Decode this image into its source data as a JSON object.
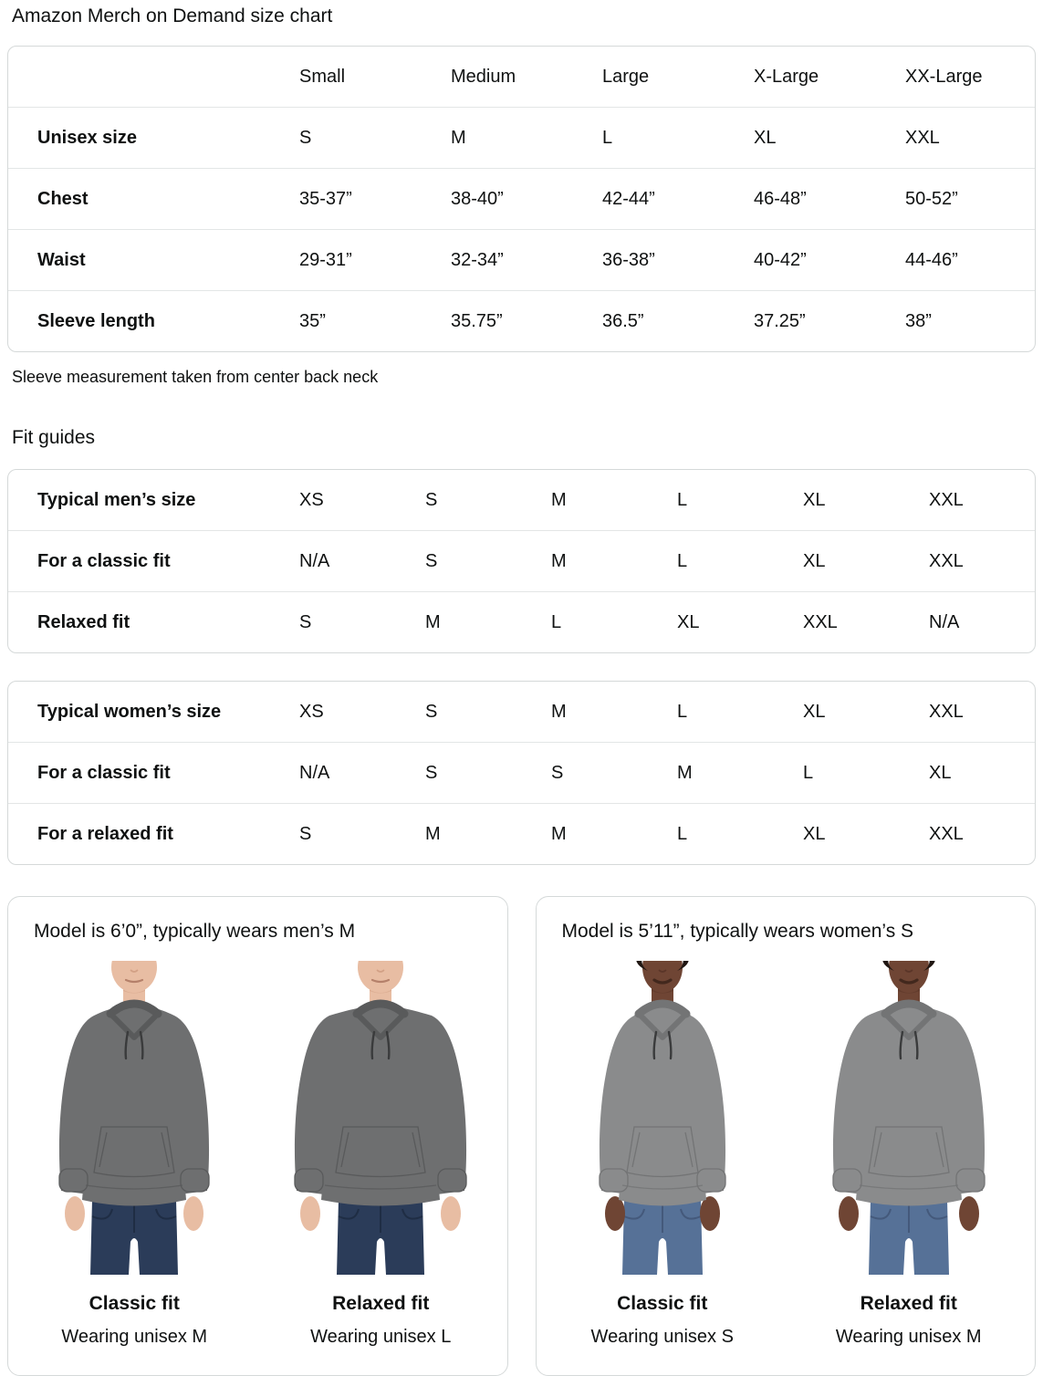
{
  "page": {
    "title": "Amazon Merch on Demand size chart",
    "footnote": "Sleeve measurement taken from center back neck",
    "fit_guides_heading": "Fit guides"
  },
  "colors": {
    "text": "#0f1111",
    "card_border": "#d5d9d9",
    "row_separator": "#e3e6e6",
    "hoodie_gray_men": "#6e6f70",
    "hoodie_gray_women": "#8a8b8c",
    "jeans_men": "#2b3c59",
    "jeans_women": "#567197"
  },
  "size_table": {
    "columns": [
      "Small",
      "Medium",
      "Large",
      "X-Large",
      "XX-Large"
    ],
    "rows": [
      {
        "label": "Unisex size",
        "values": [
          "S",
          "M",
          "L",
          "XL",
          "XXL"
        ]
      },
      {
        "label": "Chest",
        "values": [
          "35-37”",
          "38-40”",
          "42-44”",
          "46-48”",
          "50-52”"
        ]
      },
      {
        "label": "Waist",
        "values": [
          "29-31”",
          "32-34”",
          "36-38”",
          "40-42”",
          "44-46”"
        ]
      },
      {
        "label": "Sleeve length",
        "values": [
          "35”",
          "35.75”",
          "36.5”",
          "37.25”",
          "38”"
        ]
      }
    ]
  },
  "mens_fit_table": {
    "rows": [
      {
        "label": "Typical men’s size",
        "values": [
          "XS",
          "S",
          "M",
          "L",
          "XL",
          "XXL"
        ]
      },
      {
        "label": "For a classic fit",
        "values": [
          "N/A",
          "S",
          "M",
          "L",
          "XL",
          "XXL"
        ]
      },
      {
        "label": "Relaxed fit",
        "values": [
          "S",
          "M",
          "L",
          "XL",
          "XXL",
          "N/A"
        ]
      }
    ]
  },
  "womens_fit_table": {
    "rows": [
      {
        "label": "Typical women’s size",
        "values": [
          "XS",
          "S",
          "M",
          "L",
          "XL",
          "XXL"
        ]
      },
      {
        "label": "For a classic fit",
        "values": [
          "N/A",
          "S",
          "S",
          "M",
          "L",
          "XL"
        ]
      },
      {
        "label": "For a relaxed fit",
        "values": [
          "S",
          "M",
          "M",
          "L",
          "XL",
          "XXL"
        ]
      }
    ]
  },
  "panels": [
    {
      "header": "Model is 6’0”, typically wears men’s M",
      "figures": [
        {
          "fit_label": "Classic fit",
          "wearing": "Wearing unisex M",
          "model": "man",
          "variant": "classic"
        },
        {
          "fit_label": "Relaxed fit",
          "wearing": "Wearing unisex L",
          "model": "man",
          "variant": "relaxed"
        }
      ]
    },
    {
      "header": "Model is 5’11”, typically wears women’s S",
      "figures": [
        {
          "fit_label": "Classic fit",
          "wearing": "Wearing unisex S",
          "model": "woman",
          "variant": "classic"
        },
        {
          "fit_label": "Relaxed fit",
          "wearing": "Wearing unisex M",
          "model": "woman",
          "variant": "relaxed"
        }
      ]
    }
  ]
}
